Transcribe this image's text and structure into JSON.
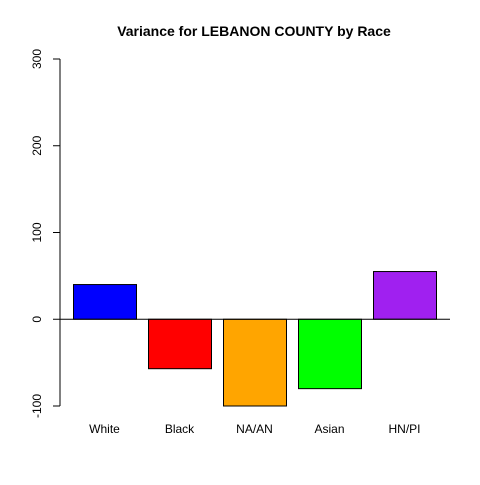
{
  "chart_data": {
    "type": "bar",
    "title": "Variance for LEBANON COUNTY by Race",
    "xlabel": "",
    "ylabel": "",
    "categories": [
      "White",
      "Black",
      "NA/AN",
      "Asian",
      "HN/PI"
    ],
    "values": [
      40,
      -57,
      -100,
      -80,
      55
    ],
    "colors": [
      "#0000ff",
      "#ff0000",
      "#ffa500",
      "#00ff00",
      "#a020f0"
    ],
    "ylim": [
      -100,
      300
    ],
    "yticks": [
      -100,
      0,
      100,
      200,
      300
    ],
    "baseline": 0,
    "grid": false,
    "legend": "none"
  }
}
